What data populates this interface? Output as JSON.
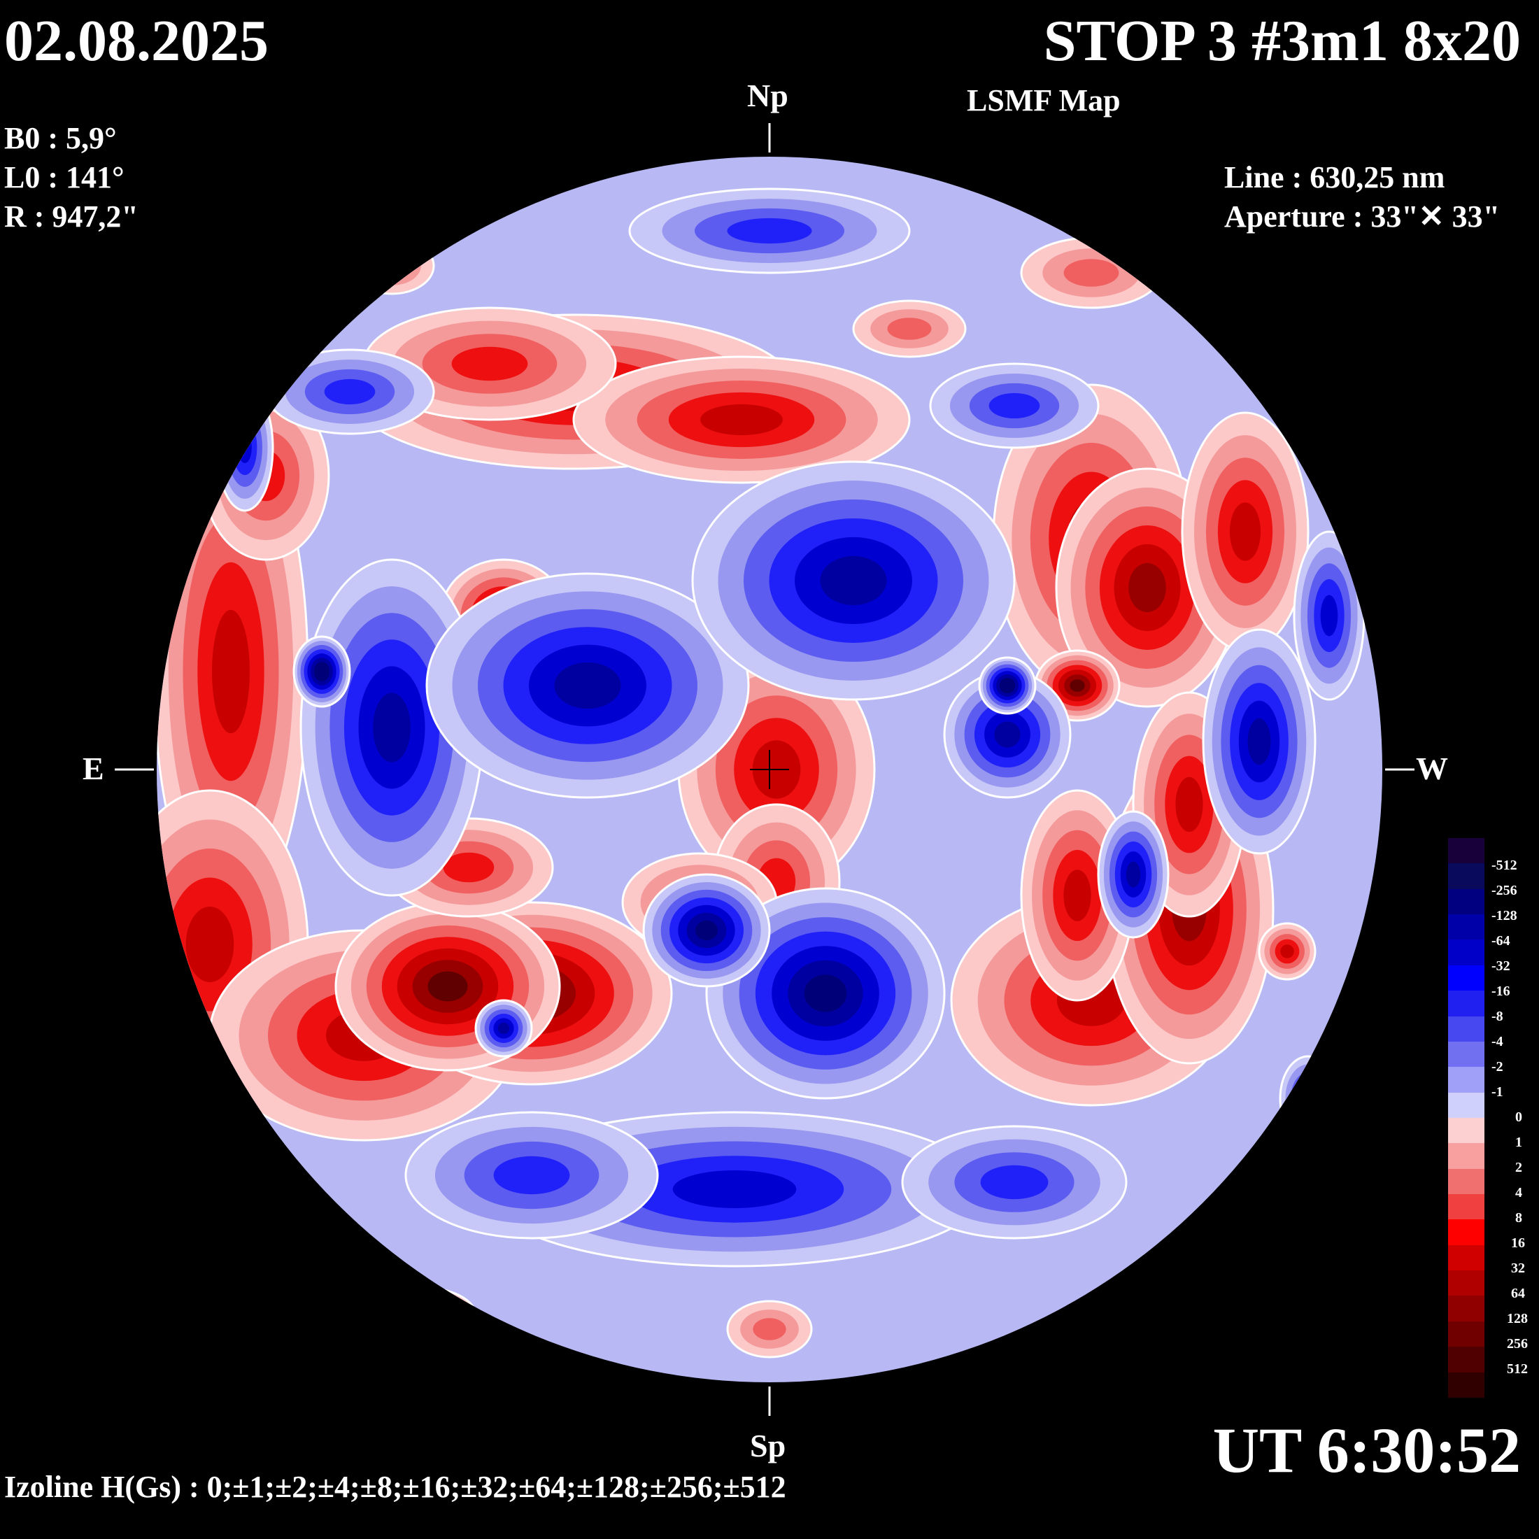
{
  "header": {
    "date": "02.08.2025",
    "title": "STOP 3 #3m1 8x20",
    "subtitle": "LSMF  Map"
  },
  "params": {
    "b0": "B0 : 5,9°",
    "l0": "L0 : 141°",
    "r": "R  : 947,2\""
  },
  "instrument": {
    "line": "Line :  630,25 nm",
    "aperture": "Aperture : 33\"✕ 33\""
  },
  "directions": {
    "north": "Np",
    "south": "Sp",
    "east": "E",
    "west": "W"
  },
  "time": "UT 6:30:52",
  "izoline": "Izoline H(Gs) : 0;±1;±2;±4;±8;±16;±32;±64;±128;±256;±512",
  "colorbar": {
    "labels": [
      "-512",
      "-256",
      "-128",
      "-64",
      "-32",
      "-16",
      "-8",
      "-4",
      "-2",
      "-1",
      "0",
      "1",
      "2",
      "4",
      "8",
      "16",
      "32",
      "64",
      "128",
      "256",
      "512"
    ],
    "colors": [
      "#18003a",
      "#0a0a5c",
      "#000080",
      "#0000a8",
      "#0000c8",
      "#0000ff",
      "#2020f0",
      "#4848f0",
      "#7070f0",
      "#a0a0f8",
      "#d0d0fc",
      "#fcd0d0",
      "#f8a0a0",
      "#f07070",
      "#f04040",
      "#ff0000",
      "#d00000",
      "#b00000",
      "#900000",
      "#700000",
      "#500000",
      "#300000"
    ]
  },
  "map": {
    "neg_colors": [
      "#c8c8f8",
      "#9898f0",
      "#5c5cf0",
      "#2020f8",
      "#0000d0",
      "#0000a0",
      "#000078"
    ],
    "pos_colors": [
      "#fcc8c8",
      "#f49a9a",
      "#f06060",
      "#ee1010",
      "#c80000",
      "#980000",
      "#600000"
    ]
  }
}
